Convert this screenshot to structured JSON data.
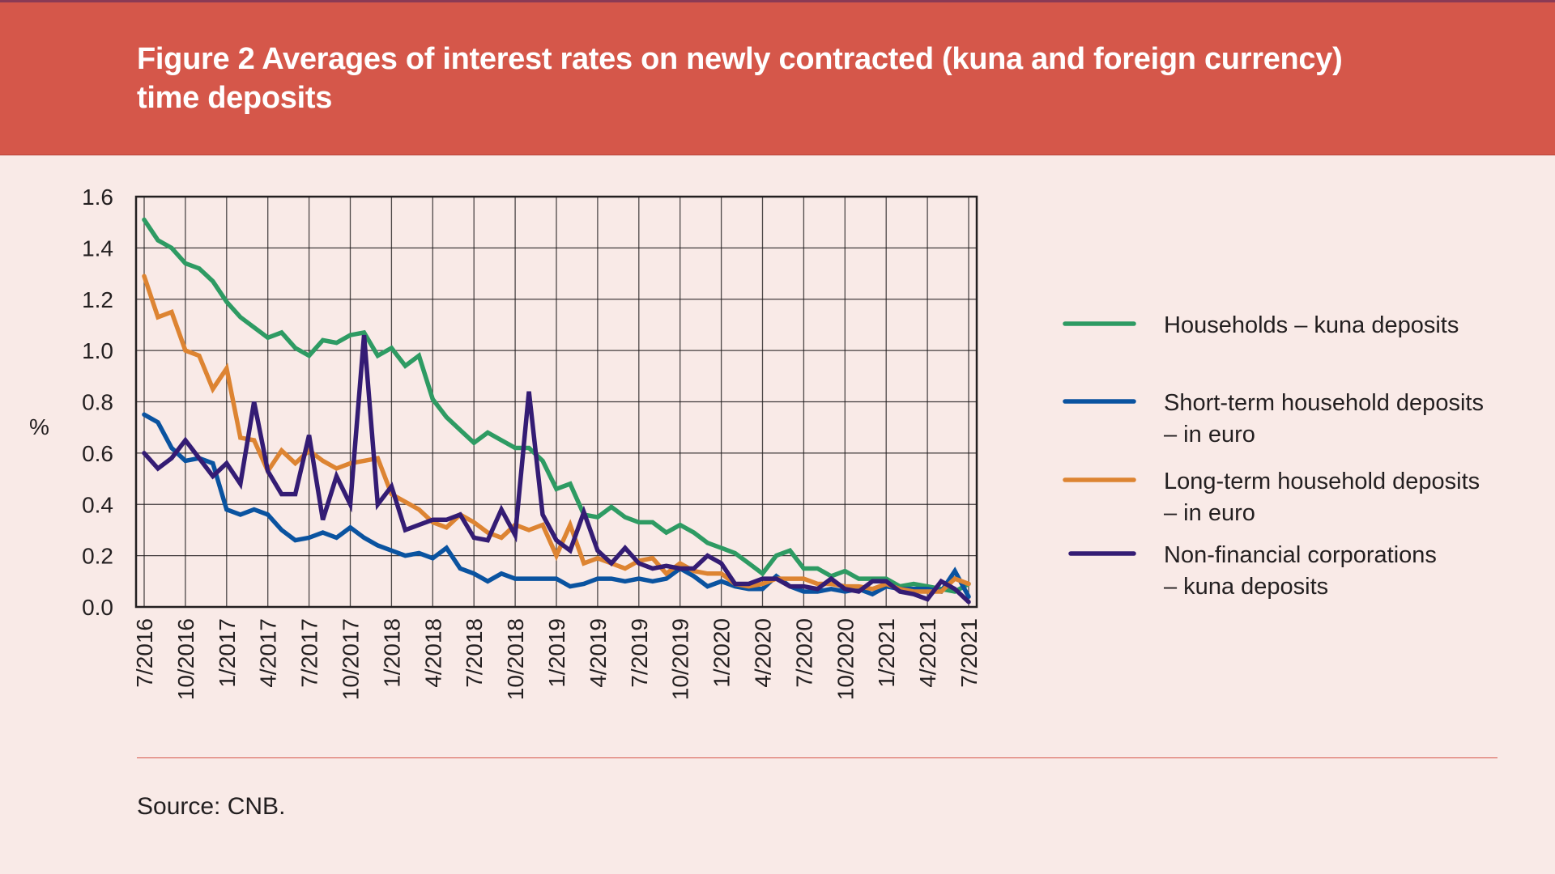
{
  "header": {
    "title": "Figure 2 Averages of interest rates on newly contracted (kuna and foreign currency) time deposits"
  },
  "footer": {
    "source": "Source: CNB."
  },
  "colors": {
    "header_bg": "#d5574a",
    "page_bg": "#f9eae7",
    "households_kuna": "#2e9b63",
    "short_term_euro": "#0a53a0",
    "long_term_euro": "#dd8432",
    "nfc_kuna": "#341c74"
  },
  "chart_data": {
    "type": "line",
    "title": "Figure 2 Averages of interest rates on newly contracted (kuna and foreign currency) time deposits",
    "xlabel": "",
    "ylabel": "%",
    "ylim": [
      0,
      1.6
    ],
    "yticks": [
      "0.0",
      "0.2",
      "0.4",
      "0.6",
      "0.8",
      "1.0",
      "1.2",
      "1.4",
      "1.6"
    ],
    "xtick_labels": [
      "7/2016",
      "10/2016",
      "1/2017",
      "4/2017",
      "7/2017",
      "10/2017",
      "1/2018",
      "4/2018",
      "7/2018",
      "10/2018",
      "1/2019",
      "4/2019",
      "7/2019",
      "10/2019",
      "1/2020",
      "4/2020",
      "7/2020",
      "10/2020",
      "1/2021",
      "4/2021",
      "7/2021"
    ],
    "x_start": "7/2016",
    "x_end": "7/2021",
    "frequency": "monthly",
    "grid": true,
    "legend_position": "right",
    "series": [
      {
        "name": "Households – kuna deposits",
        "legend_lines": [
          "Households – kuna deposits"
        ],
        "color_key": "households_kuna",
        "values": [
          1.51,
          1.43,
          1.4,
          1.34,
          1.32,
          1.27,
          1.19,
          1.13,
          1.09,
          1.05,
          1.07,
          1.01,
          0.98,
          1.04,
          1.03,
          1.06,
          1.07,
          0.98,
          1.01,
          0.94,
          0.98,
          0.81,
          0.74,
          0.69,
          0.64,
          0.68,
          0.65,
          0.62,
          0.62,
          0.57,
          0.46,
          0.48,
          0.36,
          0.35,
          0.39,
          0.35,
          0.33,
          0.33,
          0.29,
          0.32,
          0.29,
          0.25,
          0.23,
          0.21,
          0.17,
          0.13,
          0.2,
          0.22,
          0.15,
          0.15,
          0.12,
          0.14,
          0.11,
          0.11,
          0.11,
          0.08,
          0.09,
          0.08,
          0.07,
          0.06,
          0.09
        ]
      },
      {
        "name": "Short-term household deposits – in euro",
        "legend_lines": [
          "Short-term household deposits",
          "– in euro"
        ],
        "color_key": "short_term_euro",
        "values": [
          0.75,
          0.72,
          0.62,
          0.57,
          0.58,
          0.56,
          0.38,
          0.36,
          0.38,
          0.36,
          0.3,
          0.26,
          0.27,
          0.29,
          0.27,
          0.31,
          0.27,
          0.24,
          0.22,
          0.2,
          0.21,
          0.19,
          0.23,
          0.15,
          0.13,
          0.1,
          0.13,
          0.11,
          0.11,
          0.11,
          0.11,
          0.08,
          0.09,
          0.11,
          0.11,
          0.1,
          0.11,
          0.1,
          0.11,
          0.15,
          0.12,
          0.08,
          0.1,
          0.08,
          0.07,
          0.07,
          0.12,
          0.08,
          0.06,
          0.06,
          0.07,
          0.06,
          0.07,
          0.05,
          0.08,
          0.07,
          0.07,
          0.07,
          0.06,
          0.14,
          0.04
        ]
      },
      {
        "name": "Long-term household deposits – in euro",
        "legend_lines": [
          "Long-term household deposits",
          "– in euro"
        ],
        "color_key": "long_term_euro",
        "values": [
          1.29,
          1.13,
          1.15,
          1.0,
          0.98,
          0.85,
          0.93,
          0.66,
          0.65,
          0.53,
          0.61,
          0.56,
          0.61,
          0.57,
          0.54,
          0.56,
          0.57,
          0.58,
          0.44,
          0.41,
          0.38,
          0.33,
          0.31,
          0.36,
          0.33,
          0.29,
          0.27,
          0.32,
          0.3,
          0.32,
          0.2,
          0.32,
          0.17,
          0.19,
          0.17,
          0.15,
          0.18,
          0.19,
          0.13,
          0.17,
          0.14,
          0.13,
          0.13,
          0.09,
          0.08,
          0.09,
          0.11,
          0.11,
          0.11,
          0.09,
          0.09,
          0.08,
          0.08,
          0.07,
          0.09,
          0.07,
          0.06,
          0.06,
          0.06,
          0.11,
          0.09
        ]
      },
      {
        "name": "Non-financial corporations – kuna deposits",
        "legend_lines": [
          "Non-financial corporations",
          "– kuna deposits"
        ],
        "color_key": "nfc_kuna",
        "values": [
          0.6,
          0.54,
          0.58,
          0.65,
          0.58,
          0.51,
          0.56,
          0.48,
          0.8,
          0.53,
          0.44,
          0.44,
          0.67,
          0.34,
          0.51,
          0.4,
          1.06,
          0.4,
          0.47,
          0.3,
          0.32,
          0.34,
          0.34,
          0.36,
          0.27,
          0.26,
          0.38,
          0.28,
          0.84,
          0.36,
          0.26,
          0.22,
          0.37,
          0.22,
          0.17,
          0.23,
          0.17,
          0.15,
          0.16,
          0.15,
          0.15,
          0.2,
          0.17,
          0.09,
          0.09,
          0.11,
          0.11,
          0.08,
          0.08,
          0.07,
          0.11,
          0.07,
          0.06,
          0.1,
          0.1,
          0.06,
          0.05,
          0.03,
          0.1,
          0.07,
          0.02
        ]
      }
    ]
  }
}
